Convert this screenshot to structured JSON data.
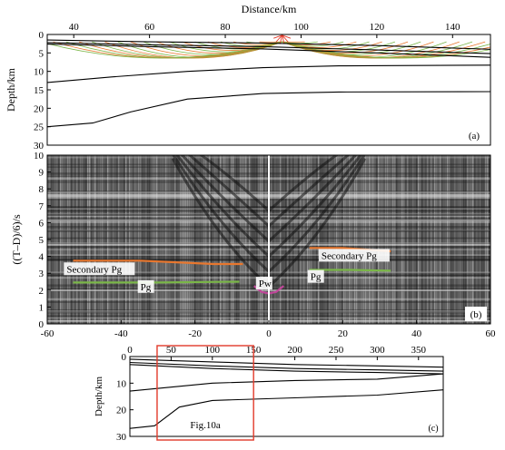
{
  "chart_data": [
    {
      "type": "line",
      "panel": "(a)",
      "xlabel": "Distance/km",
      "ylabel": "Depth/km",
      "xlim": [
        33,
        150
      ],
      "ylim": [
        30,
        0
      ],
      "xticks": [
        "40",
        "60",
        "80",
        "100",
        "120",
        "140"
      ],
      "yticks": [
        "0",
        "5",
        "10",
        "15",
        "20",
        "25",
        "30"
      ],
      "series": [
        {
          "values": [
            [
              33,
              1.5
            ],
            [
              60,
              2.0
            ],
            [
              90,
              2.3
            ],
            [
              120,
              3.0
            ],
            [
              150,
              4.0
            ]
          ]
        },
        {
          "values": [
            [
              33,
              2.2
            ],
            [
              60,
              2.8
            ],
            [
              90,
              3.3
            ],
            [
              120,
              4.2
            ],
            [
              150,
              5.2
            ]
          ]
        },
        {
          "values": [
            [
              33,
              2.6
            ],
            [
              60,
              3.3
            ],
            [
              90,
              3.9
            ],
            [
              120,
              5.0
            ],
            [
              150,
              6.2
            ]
          ]
        },
        {
          "values": [
            [
              33,
              13.0
            ],
            [
              50,
              11.5
            ],
            [
              70,
              10.0
            ],
            [
              90,
              9.0
            ],
            [
              110,
              8.5
            ],
            [
              150,
              8.3
            ]
          ]
        },
        {
          "values": [
            [
              33,
              25.0
            ],
            [
              45,
              24.0
            ],
            [
              55,
              21.0
            ],
            [
              70,
              17.5
            ],
            [
              90,
              16.0
            ],
            [
              110,
              15.6
            ],
            [
              150,
              15.5
            ]
          ]
        }
      ],
      "shot_point_km": 95,
      "ray_colors": [
        "#e8772e",
        "#7ab648",
        "#e23a2a"
      ]
    },
    {
      "type": "heatmap",
      "panel": "(b)",
      "xlabel": "",
      "ylabel": "((T–D)/6)/s",
      "xlim": [
        -60,
        60
      ],
      "ylim": [
        0,
        10
      ],
      "xticks": [
        "-60",
        "-40",
        "-20",
        "0",
        "20",
        "40",
        "60"
      ],
      "yticks": [
        "0",
        "1",
        "2",
        "3",
        "4",
        "5",
        "6",
        "7",
        "8",
        "9",
        "10"
      ],
      "picks": [
        {
          "label": "Secondary Pg",
          "color": "#e8772e",
          "values": [
            [
              -53,
              3.75
            ],
            [
              -35,
              3.75
            ],
            [
              -15,
              3.55
            ],
            [
              -7,
              3.55
            ]
          ]
        },
        {
          "label": "Secondary Pg",
          "color": "#e8772e",
          "values": [
            [
              11,
              4.5
            ],
            [
              20,
              4.5
            ],
            [
              33,
              4.3
            ]
          ]
        },
        {
          "label": "Pg",
          "color": "#7ab648",
          "values": [
            [
              -53,
              2.45
            ],
            [
              -30,
              2.45
            ],
            [
              -8,
              2.5
            ]
          ]
        },
        {
          "label": "Pg",
          "color": "#7ab648",
          "values": [
            [
              11,
              3.2
            ],
            [
              22,
              3.2
            ],
            [
              33,
              3.15
            ]
          ]
        },
        {
          "label": "Pw",
          "color": "#c0479a",
          "values": [
            [
              -4,
              2.25
            ],
            [
              -2,
              1.9
            ],
            [
              0,
              1.8
            ],
            [
              2,
              1.9
            ],
            [
              4,
              2.25
            ]
          ]
        }
      ]
    },
    {
      "type": "line",
      "panel": "(c)",
      "xlabel": "",
      "ylabel": "Depth/km",
      "xlim": [
        0,
        380
      ],
      "ylim": [
        30,
        0
      ],
      "xticks": [
        "0",
        "50",
        "100",
        "150",
        "200",
        "250",
        "300",
        "350"
      ],
      "yticks": [
        "0",
        "10",
        "20",
        "30"
      ],
      "series": [
        {
          "values": [
            [
              0,
              1.0
            ],
            [
              100,
              2.0
            ],
            [
              200,
              3.0
            ],
            [
              300,
              3.5
            ],
            [
              380,
              4.0
            ]
          ]
        },
        {
          "values": [
            [
              0,
              2.2
            ],
            [
              100,
              3.5
            ],
            [
              200,
              4.5
            ],
            [
              300,
              5.0
            ],
            [
              380,
              5.5
            ]
          ]
        },
        {
          "values": [
            [
              0,
              3.0
            ],
            [
              100,
              4.5
            ],
            [
              200,
              5.5
            ],
            [
              300,
              6.0
            ],
            [
              380,
              6.5
            ]
          ]
        },
        {
          "values": [
            [
              0,
              13.0
            ],
            [
              50,
              11.5
            ],
            [
              100,
              10.0
            ],
            [
              200,
              9.0
            ],
            [
              300,
              8.5
            ],
            [
              380,
              6.5
            ]
          ]
        },
        {
          "values": [
            [
              0,
              27.0
            ],
            [
              30,
              26.0
            ],
            [
              60,
              19.0
            ],
            [
              100,
              16.5
            ],
            [
              200,
              15.5
            ],
            [
              300,
              14.5
            ],
            [
              380,
              12.5
            ]
          ]
        }
      ],
      "highlight_box": {
        "label": "Fig.10a",
        "x0": 33,
        "x1": 150,
        "color": "#e23a2a"
      }
    }
  ]
}
